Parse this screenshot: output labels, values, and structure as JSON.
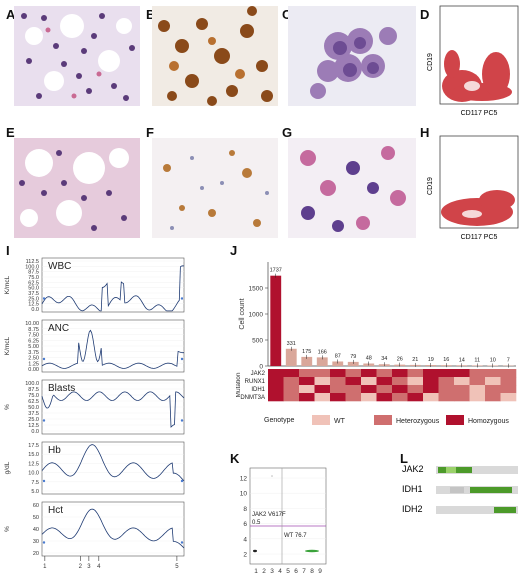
{
  "panels": {
    "A": "A",
    "B": "B",
    "C": "C",
    "D": "D",
    "E": "E",
    "F": "F",
    "G": "G",
    "H": "H",
    "I": "I",
    "J": "J",
    "K": "K",
    "L": "L"
  },
  "flow": {
    "top": {
      "ylabel": "CD19",
      "xlabel": "CD117 PC5"
    },
    "bottom": {
      "ylabel": "CD19",
      "xlabel": "CD117 PC5"
    }
  },
  "timeseries": {
    "panels": [
      {
        "name": "WBC",
        "unit": "K/mcL",
        "ticks": [
          "112.5",
          "100.0",
          "87.5",
          "75.0",
          "62.5",
          "50.0",
          "37.5",
          "25.0",
          "12.5",
          "0.0"
        ]
      },
      {
        "name": "ANC",
        "unit": "K/mcL",
        "ticks": [
          "10.00",
          "8.75",
          "7.50",
          "6.25",
          "5.00",
          "3.75",
          "2.50",
          "1.25",
          "0.00"
        ]
      },
      {
        "name": "Blasts",
        "unit": "%",
        "ticks": [
          "100.0",
          "87.5",
          "75.0",
          "62.5",
          "50.0",
          "37.5",
          "25.0",
          "12.5",
          "0.0"
        ]
      },
      {
        "name": "Hb",
        "unit": "g/dL",
        "ticks": [
          "17.5",
          "15.0",
          "12.5",
          "10.0",
          "7.5",
          "5.0"
        ]
      },
      {
        "name": "Hct",
        "unit": "%",
        "ticks": [
          "60",
          "50",
          "40",
          "30",
          "20"
        ]
      }
    ],
    "timepoints": [
      "1",
      "2",
      "3",
      "4",
      "5"
    ]
  },
  "colors": {
    "wt": "#f0c2b8",
    "het": "#cf6f6f",
    "hom": "#b0112e",
    "line": "#1f3b73"
  },
  "chart_data": [
    {
      "type": "bar",
      "ylabel": "Cell count",
      "yticks": [
        "1500",
        "1000",
        "500",
        "0"
      ],
      "ylim": [
        0,
        2000
      ],
      "values": [
        1737,
        331,
        175,
        166,
        87,
        79,
        48,
        34,
        26,
        21,
        19,
        16,
        14,
        11,
        10,
        7
      ],
      "value_labels": [
        "1737",
        "331",
        "175",
        "166",
        "87",
        "79",
        "48",
        "34",
        "26",
        "21",
        "19",
        "16",
        "14",
        "11",
        "10",
        "7"
      ],
      "mutation_axis_label": "Mutation",
      "mutations": [
        "JAK2",
        "RUNX1",
        "IDH1",
        "DNMT3A"
      ],
      "genotype_matrix": [
        [
          "hom",
          "hom",
          "het",
          "het",
          "hom",
          "het",
          "hom",
          "het",
          "hom",
          "het",
          "hom",
          "hom",
          "hom",
          "het",
          "het",
          "het"
        ],
        [
          "hom",
          "het",
          "hom",
          "wt",
          "het",
          "hom",
          "wt",
          "hom",
          "het",
          "wt",
          "hom",
          "het",
          "wt",
          "het",
          "wt",
          "het"
        ],
        [
          "hom",
          "het",
          "wt",
          "hom",
          "het",
          "het",
          "hom",
          "het",
          "hom",
          "het",
          "hom",
          "het",
          "het",
          "wt",
          "het",
          "het"
        ],
        [
          "hom",
          "het",
          "hom",
          "wt",
          "hom",
          "het",
          "wt",
          "hom",
          "het",
          "hom",
          "wt",
          "het",
          "het",
          "wt",
          "het",
          "wt"
        ]
      ],
      "legend_title": "Genotype",
      "legend": [
        {
          "key": "wt",
          "label": "WT"
        },
        {
          "key": "het",
          "label": "Heterozygous"
        },
        {
          "key": "hom",
          "label": "Homozygous"
        }
      ]
    },
    {
      "type": "scatter",
      "yticks": [
        "12",
        "10",
        "8",
        "6",
        "4",
        "2"
      ],
      "xticks": [
        "1",
        "2",
        "3",
        "4",
        "5",
        "6",
        "7",
        "8",
        "9"
      ],
      "annotations": [
        "JAK2 V617F",
        "0.5",
        "WT 76.7"
      ]
    }
  ],
  "gel": {
    "genes": [
      "JAK2",
      "IDH1",
      "IDH2"
    ]
  }
}
